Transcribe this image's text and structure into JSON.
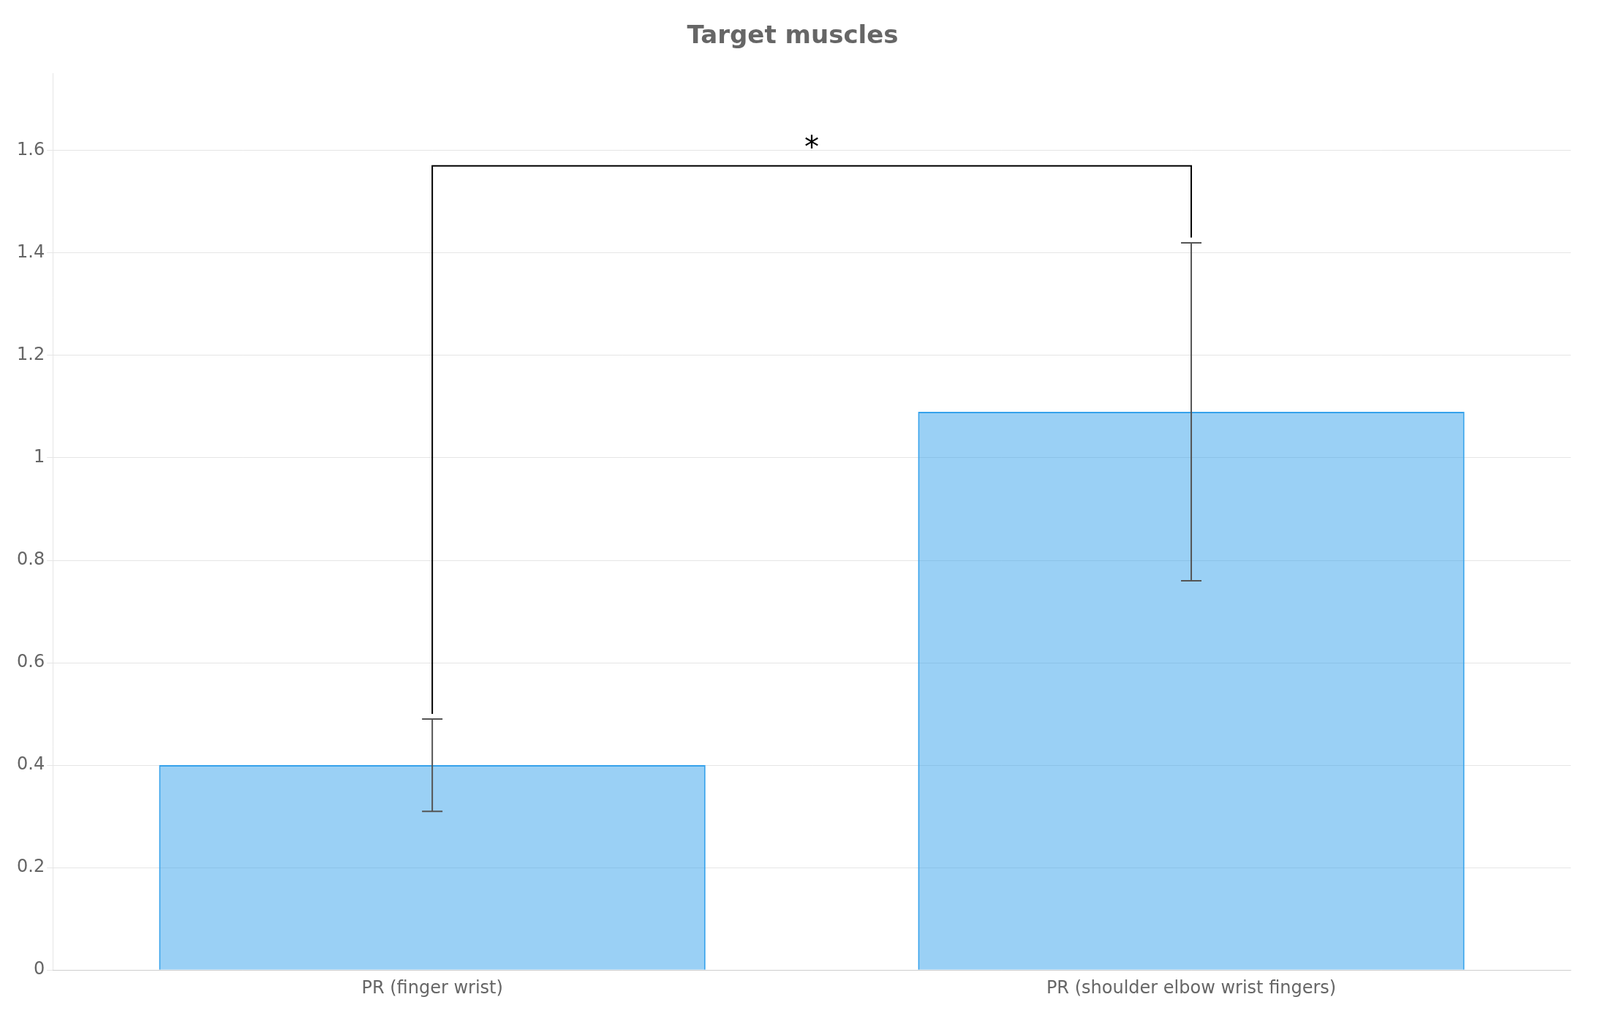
{
  "chart_data": {
    "type": "bar",
    "title": "Target muscles",
    "categories": [
      "PR (finger wrist)",
      "PR (shoulder elbow wrist fingers)"
    ],
    "values": [
      0.4,
      1.09
    ],
    "errors": [
      0.09,
      0.33
    ],
    "ylim": [
      0,
      1.75
    ],
    "yticks": [
      0,
      0.2,
      0.4,
      0.6,
      0.8,
      1,
      1.2,
      1.4,
      1.6
    ],
    "grid": true,
    "annotations": [
      {
        "text": "*",
        "y": 1.585,
        "bracket": {
          "from": "PR (finger wrist)",
          "to": "PR (shoulder elbow wrist fingers)",
          "top": 1.57,
          "left": 0.5,
          "right": 1.43
        }
      }
    ]
  }
}
